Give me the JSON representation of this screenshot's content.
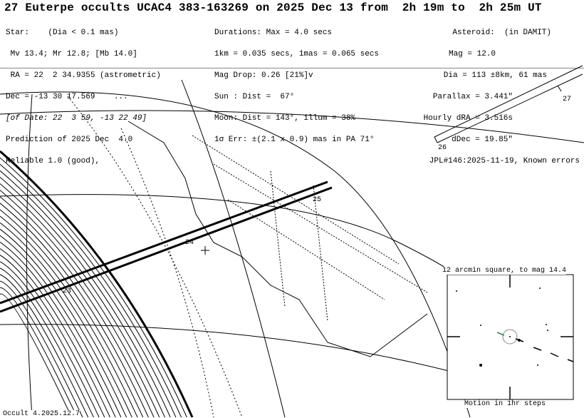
{
  "title": "27 Euterpe occults UCAC4 383-163269 on 2025 Dec 13 from  2h 19m to  2h 25m UT",
  "star": [
    "Star:    (Dia < 0.1 mas)",
    " Mv 13.4; Mr 12.8; [Mb 14.0]",
    " RA = 22  2 34.9355 (astrometric)",
    "Dec = -13 30 17.569    ...",
    "[of Date: 22  3 59, -13 22 49]",
    "Prediction of 2025 Dec  4.0",
    "Reliable 1.0 (good),"
  ],
  "event": [
    "Durations: Max = 4.0 secs",
    "1km = 0.035 secs, 1mas = 0.065 secs",
    "Mag Drop: 0.26 [21%]v",
    "Sun : Dist =  67°",
    "Moon: Dist = 143°, illum = 38%",
    "1σ Err: ±(2.1 x 0.9) mas in PA 71°"
  ],
  "asteroid": [
    "Asteroid:  (in DAMIT)",
    "Mag = 12.0",
    "Dia = 113 ±8km, 61 mas",
    "Parallax = 3.441\"",
    "Hourly dRA = 3.516s",
    "dDec = 19.85\"",
    "JPL#146:2025-11-19, Known errors"
  ],
  "map": {
    "path_labels": [
      "23",
      "24",
      "25"
    ],
    "box_labels": [
      "26",
      "27"
    ],
    "footer": "Occult 4.2025.12.7"
  },
  "inset": {
    "title": "12 arcmin square, to mag 14.4",
    "caption": "Motion in 1hr steps"
  }
}
